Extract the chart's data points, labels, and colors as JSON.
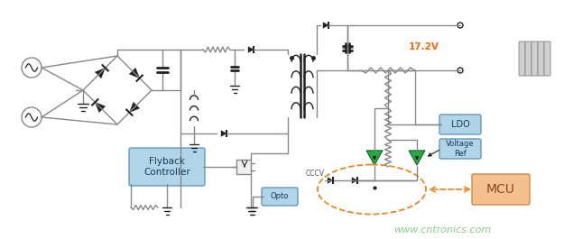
{
  "bg_color": "#ffffff",
  "line_color": "#888888",
  "dark_line": "#222222",
  "green_tri": "#22aa44",
  "orange_dash": "#e88820",
  "blue_box": "#b0d4e8",
  "blue_border": "#6699bb",
  "mcu_fill": "#f5c090",
  "mcu_border": "#cc8844",
  "voltage_color": "#ff6600",
  "watermark_color": "#88cc88",
  "voltage_label": "17.2V",
  "watermark": "www.cntronics.com",
  "flyback_label": "Flyback\nController",
  "ldo_label": "LDO",
  "voltage_ref_label": "Voltage\nRef",
  "mcu_label": "MCU",
  "opto_label": "Opto",
  "cccv_label": "CCCV"
}
